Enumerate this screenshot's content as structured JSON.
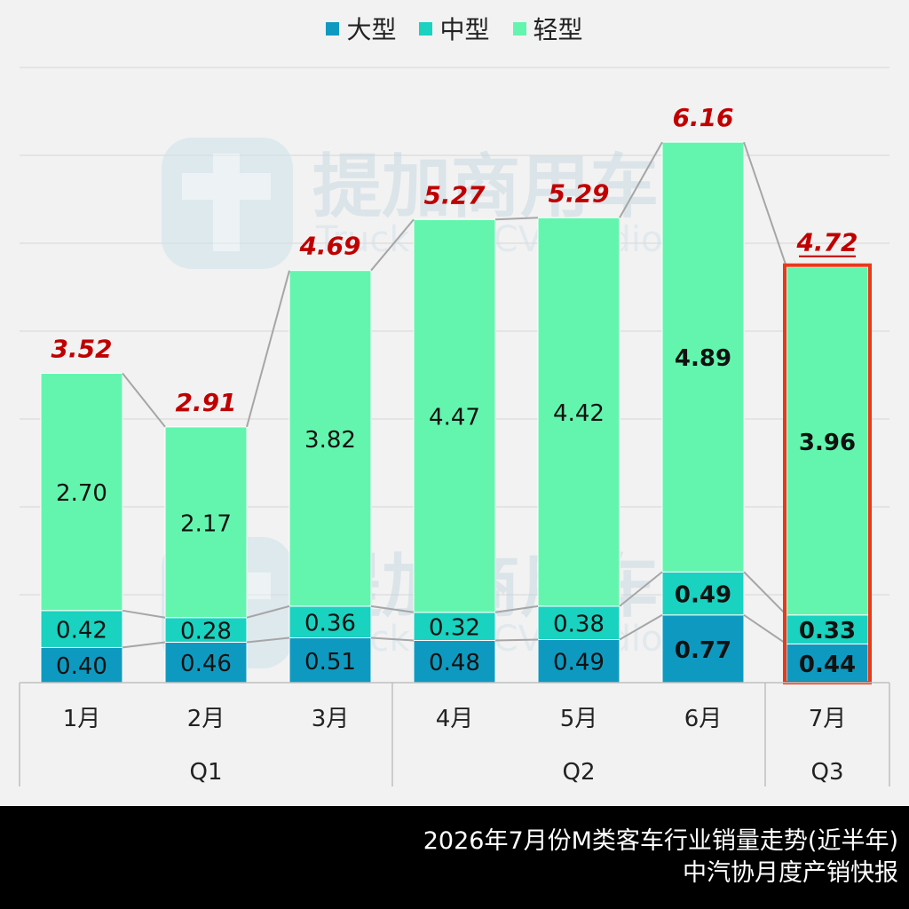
{
  "legend": {
    "items": [
      {
        "label": "大型",
        "color": "#0e9ac0"
      },
      {
        "label": "中型",
        "color": "#19d2c0"
      },
      {
        "label": "轻型",
        "color": "#63f5ae"
      }
    ]
  },
  "watermark": {
    "cn": "提加商用车",
    "en": "TruckPlus CV studio"
  },
  "footer": {
    "title": "2026年7月份M类客车行业销量走势(近半年)",
    "subtitle": "中汽协月度产销快报"
  },
  "colors": {
    "large": "#0e9ac0",
    "medium": "#19d2c0",
    "light": "#63f5ae",
    "total_label": "#c00000",
    "highlight_border": "#e8391a"
  },
  "chart_data": {
    "type": "bar",
    "stacked": true,
    "categories": [
      "1月",
      "2月",
      "3月",
      "4月",
      "5月",
      "6月",
      "7月"
    ],
    "groups": [
      {
        "label": "Q1",
        "categories": [
          "1月",
          "2月",
          "3月"
        ]
      },
      {
        "label": "Q2",
        "categories": [
          "4月",
          "5月",
          "6月"
        ]
      },
      {
        "label": "Q3",
        "categories": [
          "7月"
        ]
      }
    ],
    "series": [
      {
        "name": "大型",
        "values": [
          0.4,
          0.46,
          0.51,
          0.48,
          0.49,
          0.77,
          0.44
        ]
      },
      {
        "name": "中型",
        "values": [
          0.42,
          0.28,
          0.36,
          0.32,
          0.38,
          0.49,
          0.33
        ]
      },
      {
        "name": "轻型",
        "values": [
          2.7,
          2.17,
          3.82,
          4.47,
          4.42,
          4.89,
          3.96
        ]
      }
    ],
    "value_labels": [
      [
        "0.40",
        "0.46",
        "0.51",
        "0.48",
        "0.49",
        "0.77",
        "0.44"
      ],
      [
        "0.42",
        "0.28",
        "0.36",
        "0.32",
        "0.38",
        "0.49",
        "0.33"
      ],
      [
        "2.70",
        "2.17",
        "3.82",
        "4.47",
        "4.42",
        "4.89",
        "3.96"
      ]
    ],
    "totals": [
      3.52,
      2.91,
      4.69,
      5.27,
      5.29,
      6.16,
      4.72
    ],
    "total_labels": [
      "3.52",
      "2.91",
      "4.69",
      "5.27",
      "5.29",
      "6.16",
      "4.72"
    ],
    "bold_bars": [
      "6月",
      "7月"
    ],
    "highlight_bar": "7月",
    "ylim": [
      0,
      7
    ],
    "grid": true,
    "legend_position": "top-center"
  }
}
